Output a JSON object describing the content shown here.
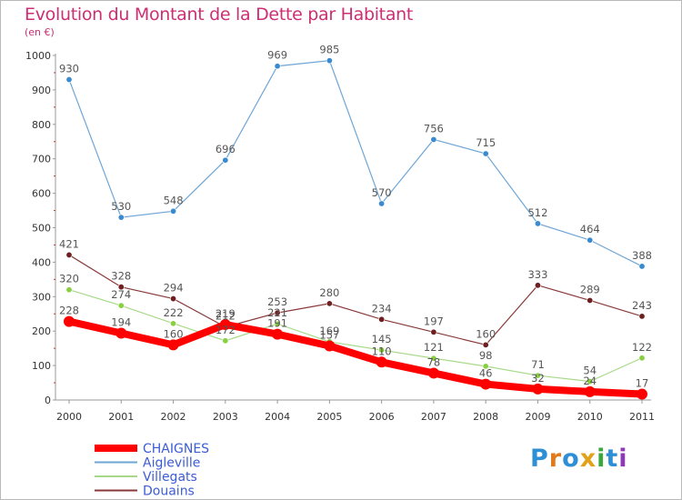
{
  "title": "Evolution du Montant de la Dette par Habitant",
  "unit": "(en €)",
  "logo": {
    "text": "Proxiti",
    "letter_colors": [
      "#2f8fd6",
      "#e07a1a",
      "#2f8fd6",
      "#e0a21a",
      "#3aa83a",
      "#2f8fd6",
      "#8e3ab8"
    ]
  },
  "chart_data": {
    "type": "line",
    "title": "Evolution du Montant de la Dette par Habitant",
    "subtitle": "(en €)",
    "categories": [
      "2000",
      "2001",
      "2002",
      "2003",
      "2004",
      "2005",
      "2006",
      "2007",
      "2008",
      "2009",
      "2010",
      "2011"
    ],
    "ylim": [
      0,
      1000
    ],
    "yticks": [
      0,
      100,
      200,
      300,
      400,
      500,
      600,
      700,
      800,
      900,
      1000
    ],
    "grid": false,
    "legend_position": "bottom-left",
    "series": [
      {
        "name": "CHAIGNES",
        "color": "#ff0000",
        "emphasis": true,
        "label_color": "#555555",
        "values": [
          228,
          194,
          160,
          219,
          191,
          157,
          110,
          78,
          46,
          32,
          24,
          17
        ],
        "labels": [
          "228",
          "194",
          "160",
          "219",
          "191",
          "157",
          "110",
          "78",
          "46",
          "32",
          "24",
          "17"
        ]
      },
      {
        "name": "Aigleville",
        "color": "#6ea6d6",
        "marker_color": "#3a8ad0",
        "label_color": "#555555",
        "values": [
          930,
          530,
          548,
          696,
          969,
          985,
          570,
          756,
          715,
          512,
          464,
          388
        ],
        "labels": [
          "930",
          "530",
          "548",
          "696",
          "969",
          "985",
          "570",
          "756",
          "715",
          "512",
          "464",
          "388"
        ]
      },
      {
        "name": "Villegats",
        "color": "#a8d98a",
        "marker_color": "#88d040",
        "label_color": "#555555",
        "values": [
          320,
          274,
          222,
          172,
          221,
          169,
          145,
          121,
          98,
          71,
          54,
          122
        ],
        "labels": [
          "320",
          "274",
          "222",
          "172",
          "221",
          "169",
          "145",
          "121",
          "98",
          "71",
          "54",
          "122"
        ]
      },
      {
        "name": "Douains",
        "color": "#8a3a3a",
        "marker_color": "#6e1f1f",
        "label_color": "#555555",
        "values": [
          421,
          328,
          294,
          212,
          253,
          280,
          234,
          197,
          160,
          333,
          289,
          243
        ],
        "labels": [
          "421",
          "328",
          "294",
          "212",
          "253",
          "280",
          "234",
          "197",
          "160",
          "333",
          "289",
          "243"
        ]
      }
    ]
  }
}
